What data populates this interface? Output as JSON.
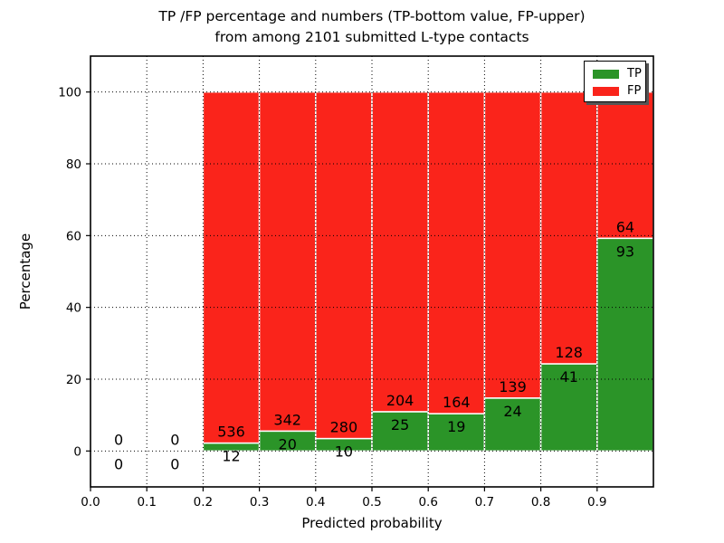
{
  "figure": {
    "title_line1": "TP /FP percentage and numbers (TP-bottom value, FP-upper)",
    "title_line2": "from among 2101 submitted L-type contacts"
  },
  "chart_data": {
    "type": "bar",
    "subtype": "stacked-percentage-histogram",
    "title": "TP /FP percentage and numbers (TP-bottom value, FP-upper)\nfrom among 2101 submitted L-type contacts",
    "xlabel": "Predicted probability",
    "ylabel": "Percentage",
    "total_contacts": 2101,
    "xlim": [
      0.0,
      1.0
    ],
    "ylim": [
      -10,
      110
    ],
    "x_ticks": [
      0.0,
      0.1,
      0.2,
      0.3,
      0.4,
      0.5,
      0.6,
      0.7,
      0.8,
      0.9
    ],
    "x_tick_labels": [
      "0.0",
      "0.1",
      "0.2",
      "0.3",
      "0.4",
      "0.5",
      "0.6",
      "0.7",
      "0.8",
      "0.9"
    ],
    "y_ticks": [
      0,
      20,
      40,
      60,
      80,
      100
    ],
    "y_tick_labels": [
      "0",
      "20",
      "40",
      "60",
      "80",
      "100"
    ],
    "grid": "dotted",
    "grid_over_bars": true,
    "bar_edge_color": "#ffffff",
    "colors": {
      "tp": "#2b9428",
      "fp": "#fa241b"
    },
    "legend": {
      "position": "upper right",
      "entries": [
        {
          "label": "TP",
          "color": "#2b9428"
        },
        {
          "label": "FP",
          "color": "#fa241b"
        }
      ]
    },
    "bins": [
      {
        "x0": 0.0,
        "x1": 0.1,
        "tp": 0,
        "fp": 0
      },
      {
        "x0": 0.1,
        "x1": 0.2,
        "tp": 0,
        "fp": 0
      },
      {
        "x0": 0.2,
        "x1": 0.3,
        "tp": 12,
        "fp": 536
      },
      {
        "x0": 0.3,
        "x1": 0.4,
        "tp": 20,
        "fp": 342
      },
      {
        "x0": 0.4,
        "x1": 0.5,
        "tp": 10,
        "fp": 280
      },
      {
        "x0": 0.5,
        "x1": 0.6,
        "tp": 25,
        "fp": 204
      },
      {
        "x0": 0.6,
        "x1": 0.7,
        "tp": 19,
        "fp": 164
      },
      {
        "x0": 0.7,
        "x1": 0.8,
        "tp": 24,
        "fp": 139
      },
      {
        "x0": 0.8,
        "x1": 0.9,
        "tp": 41,
        "fp": 128
      },
      {
        "x0": 0.9,
        "x1": 1.0,
        "tp": 93,
        "fp": 64
      }
    ]
  }
}
